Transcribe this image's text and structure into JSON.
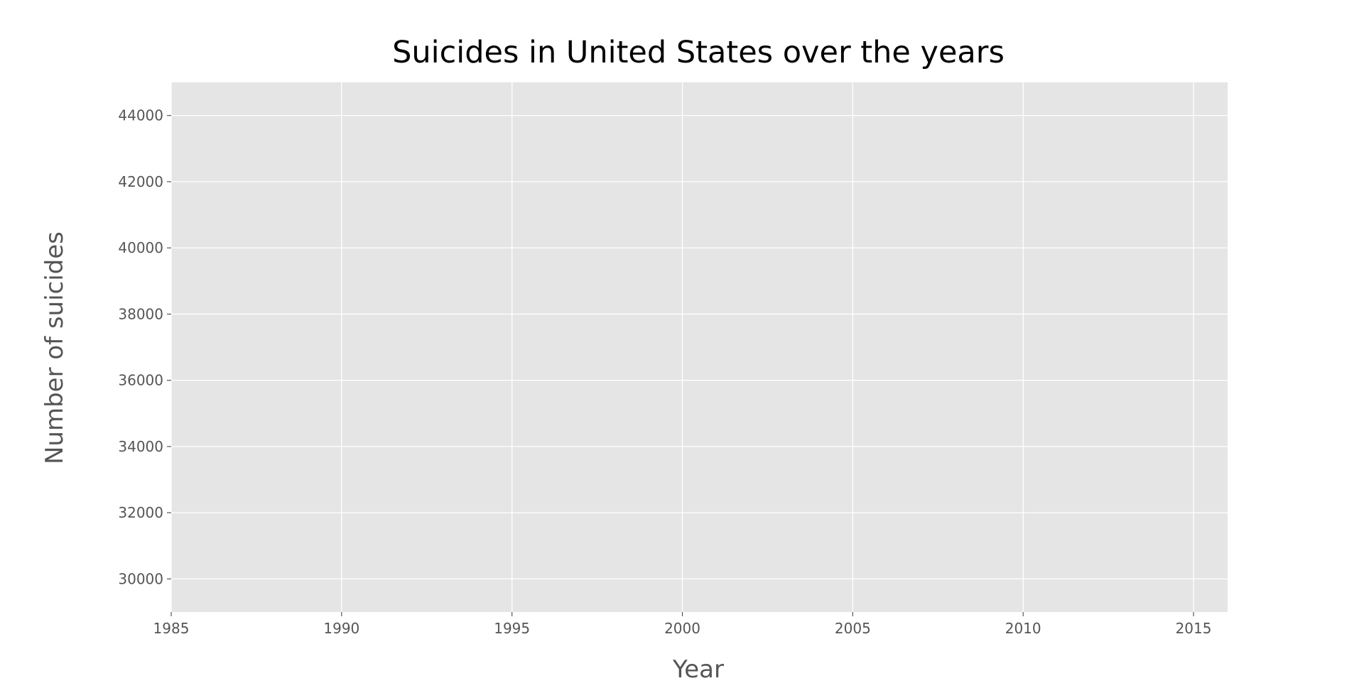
{
  "chart_data": {
    "type": "line",
    "title": "Suicides in United States over the years",
    "xlabel": "Year",
    "ylabel": "Number of suicides",
    "xlim": [
      1985,
      2016
    ],
    "ylim": [
      29000,
      45000
    ],
    "x_ticks": [
      1985,
      1990,
      1995,
      2000,
      2005,
      2010,
      2015
    ],
    "y_ticks": [
      30000,
      32000,
      34000,
      36000,
      38000,
      40000,
      42000,
      44000
    ],
    "grid": true,
    "series": [],
    "colors": {
      "plot_background": "#e5e5e5",
      "grid": "#ffffff",
      "tick_text": "#555555",
      "title_text": "#000000"
    }
  }
}
